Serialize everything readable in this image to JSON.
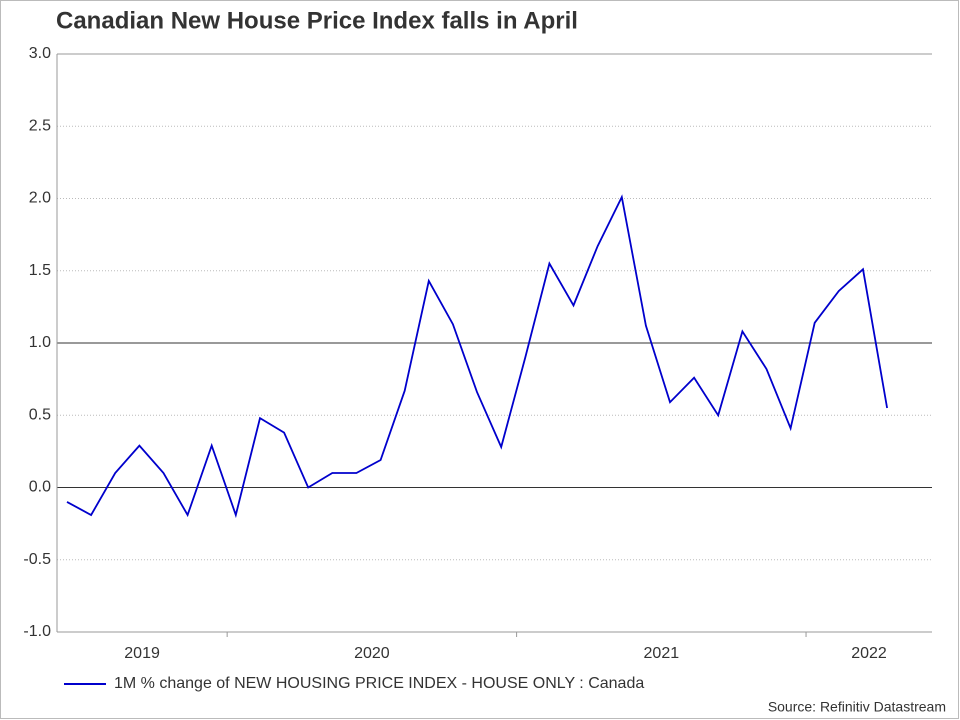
{
  "chart_data": {
    "type": "line",
    "title": "Canadian New House Price Index falls in April",
    "categories": [
      null,
      null,
      null,
      null,
      null,
      null,
      null,
      null,
      null,
      null,
      null,
      null,
      null,
      null,
      null,
      null,
      null,
      null,
      null,
      null,
      null,
      null,
      null,
      null,
      null,
      null,
      null,
      null,
      null,
      null,
      null,
      null,
      null,
      null,
      null
    ],
    "year_labels": [
      "2019",
      "2020",
      "2021",
      "2022"
    ],
    "series": [
      {
        "name": "1M % change of NEW HOUSING PRICE INDEX - HOUSE ONLY : Canada",
        "color": "#0000cc",
        "values": [
          -0.1,
          -0.19,
          0.1,
          0.29,
          0.1,
          -0.19,
          0.29,
          -0.19,
          0.48,
          0.38,
          0.0,
          0.1,
          0.1,
          0.19,
          0.67,
          1.43,
          1.13,
          0.66,
          0.28,
          0.9,
          1.55,
          1.26,
          1.67,
          2.01,
          1.12,
          0.59,
          0.76,
          0.5,
          1.08,
          0.82,
          0.41,
          1.14,
          1.36,
          1.51,
          0.55
        ]
      }
    ],
    "ylim": [
      -1.0,
      3.0
    ],
    "yticks": [
      {
        "value": -1.0,
        "label": "-1.0"
      },
      {
        "value": -0.5,
        "label": "-0.5"
      },
      {
        "value": 0.0,
        "label": "0.0"
      },
      {
        "value": 0.5,
        "label": "0.5"
      },
      {
        "value": 1.0,
        "label": "1.0"
      },
      {
        "value": 1.5,
        "label": "1.5"
      },
      {
        "value": 2.0,
        "label": "2.0"
      },
      {
        "value": 2.5,
        "label": "2.5"
      },
      {
        "value": 3.0,
        "label": "3.0"
      }
    ],
    "reference_lines": [
      0,
      1
    ],
    "grid": true,
    "source": "Source: Refinitiv Datastream"
  }
}
